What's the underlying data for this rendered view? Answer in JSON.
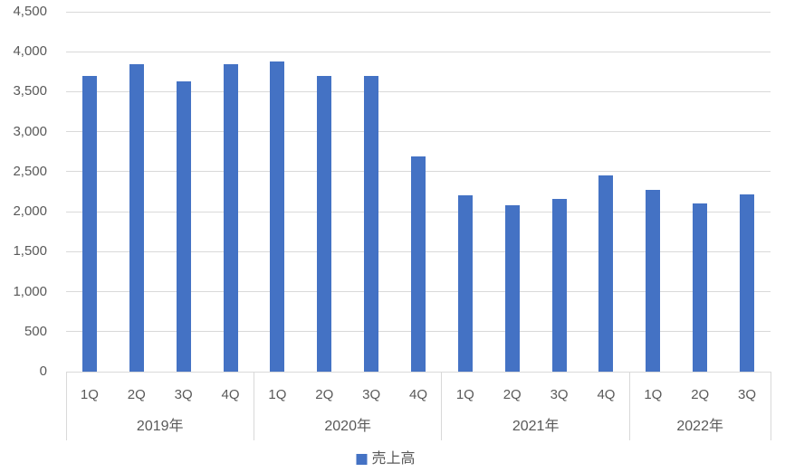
{
  "colors": {
    "accent": "#4472C4",
    "gridline": "#D9D9D9",
    "text": "#595959",
    "background": "#FFFFFF"
  },
  "chart_data": {
    "type": "bar",
    "title": "",
    "series_name": "売上高",
    "legend_position": "bottom",
    "grid": true,
    "bar_color": "#4472C4",
    "y_axis": {
      "min": 0,
      "max": 4500,
      "step": 500,
      "tick_labels": [
        "0",
        "500",
        "1,000",
        "1,500",
        "2,000",
        "2,500",
        "3,000",
        "3,500",
        "4,000",
        "4,500"
      ]
    },
    "groups": [
      {
        "year": "2019年",
        "quarters": [
          "1Q",
          "2Q",
          "3Q",
          "4Q"
        ],
        "values": [
          3700,
          3840,
          3630,
          3840
        ]
      },
      {
        "year": "2020年",
        "quarters": [
          "1Q",
          "2Q",
          "3Q",
          "4Q"
        ],
        "values": [
          3880,
          3700,
          3700,
          2690
        ]
      },
      {
        "year": "2021年",
        "quarters": [
          "1Q",
          "2Q",
          "3Q",
          "4Q"
        ],
        "values": [
          2210,
          2080,
          2160,
          2450
        ]
      },
      {
        "year": "2022年",
        "quarters": [
          "1Q",
          "2Q",
          "3Q"
        ],
        "values": [
          2270,
          2100,
          2220
        ]
      }
    ]
  },
  "legend": {
    "label": "売上高"
  }
}
